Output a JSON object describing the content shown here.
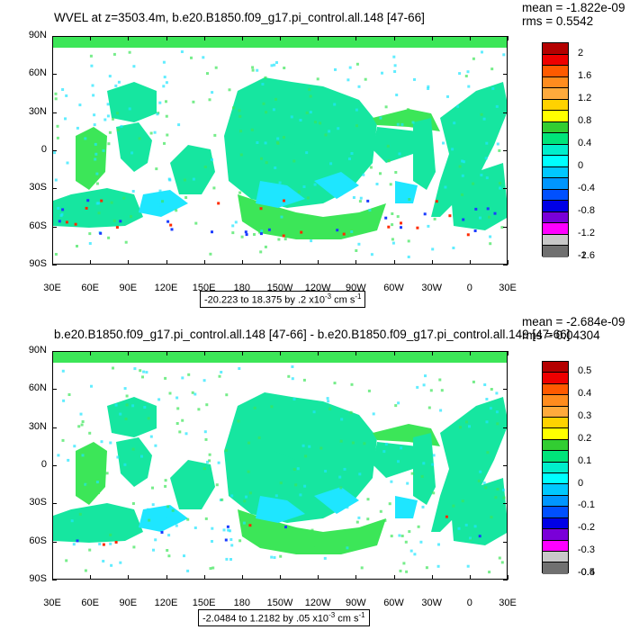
{
  "panels": [
    {
      "title": "WVEL at z=3503.4m, b.e20.B1850.f09_g17.pi_control.all.148 [47-66]",
      "mean_text": "mean = -1.822e-09",
      "rms_text": "rms = 0.5542",
      "range_text": "-20.223 to 18.375 by .2 x10",
      "range_exp": "-3",
      "range_unit": " cm s",
      "range_unit_exp": "-1",
      "colorbar_labels": [
        "2",
        "1.6",
        "1.2",
        "0.8",
        "0.4",
        "0",
        "-0.4",
        "-0.8",
        "-1.2",
        "-1.6",
        "-2"
      ]
    },
    {
      "title": "b.e20.B1850.f09_g17.pi_control.all.148 [47-66] - b.e20.B1850.f09_g17.pi_control.all.149 [47-66]",
      "mean_text": "mean = -2.684e-09",
      "rms_text": "rms = 0.04304",
      "range_text": "-2.0484 to 1.2182 by .05 x10",
      "range_exp": "-3",
      "range_unit": " cm s",
      "range_unit_exp": "-1",
      "colorbar_labels": [
        "0.5",
        "0.4",
        "0.3",
        "0.2",
        "0.1",
        "0",
        "-0.1",
        "-0.2",
        "-0.3",
        "-0.4",
        "-0.5"
      ]
    }
  ],
  "lat_labels": [
    "90N",
    "60N",
    "30N",
    "0",
    "30S",
    "60S",
    "90S"
  ],
  "lon_labels": [
    "30E",
    "60E",
    "90E",
    "120E",
    "150E",
    "180",
    "150W",
    "120W",
    "90W",
    "60W",
    "30W",
    "0",
    "30E"
  ],
  "colorbar_colors": [
    "#b40000",
    "#ee0000",
    "#ff5a00",
    "#ff8c1e",
    "#ffaa3c",
    "#ffd200",
    "#ffff00",
    "#32cd32",
    "#00e47a",
    "#00eecc",
    "#00ffff",
    "#00c8ff",
    "#0096ff",
    "#0050ff",
    "#0000e6",
    "#7a00d8",
    "#ff00ff",
    "#c8c8c8",
    "#707070"
  ],
  "field_colors": {
    "ocean_main": "#16e6a0",
    "ocean_alt": "#3ce658",
    "ocean_cyan": "#1ee6ff",
    "positive": "#ff2a00",
    "negative": "#1b3cff"
  }
}
